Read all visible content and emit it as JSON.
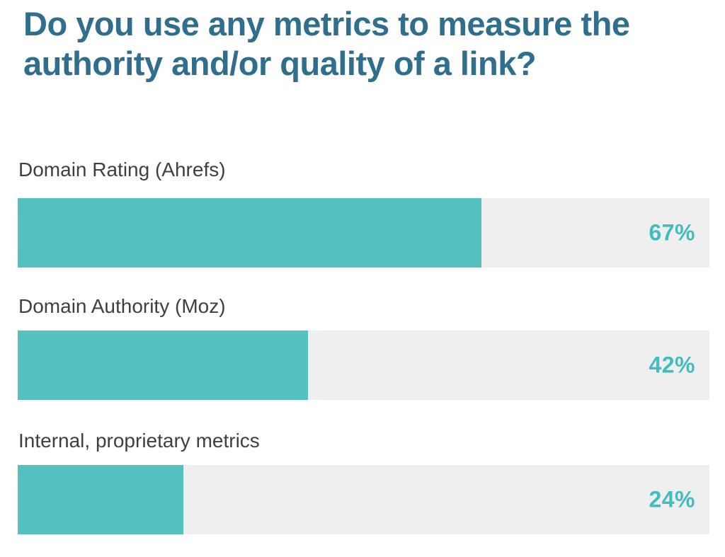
{
  "title": "Do you use any metrics to measure the authority and/or quality of a link?",
  "colors": {
    "title_text": "#2f6e8c",
    "category_label_text": "#3f3f3f",
    "bar_fill": "#54c0c0",
    "bar_track": "#efefef",
    "value_text": "#43bcbe",
    "background": "#ffffff"
  },
  "chart_data": {
    "type": "bar",
    "orientation": "horizontal",
    "title": "Do you use any metrics to measure the authority and/or quality of a link?",
    "categories": [
      "Domain Rating (Ahrefs)",
      "Domain Authority (Moz)",
      "Internal, proprietary metrics"
    ],
    "values": [
      67,
      42,
      24
    ],
    "value_labels": [
      "67%",
      "42%",
      "24%"
    ],
    "unit": "%",
    "xlim": [
      0,
      100
    ],
    "grid": false,
    "legend": false,
    "value_label_position": "inside-track-right"
  }
}
